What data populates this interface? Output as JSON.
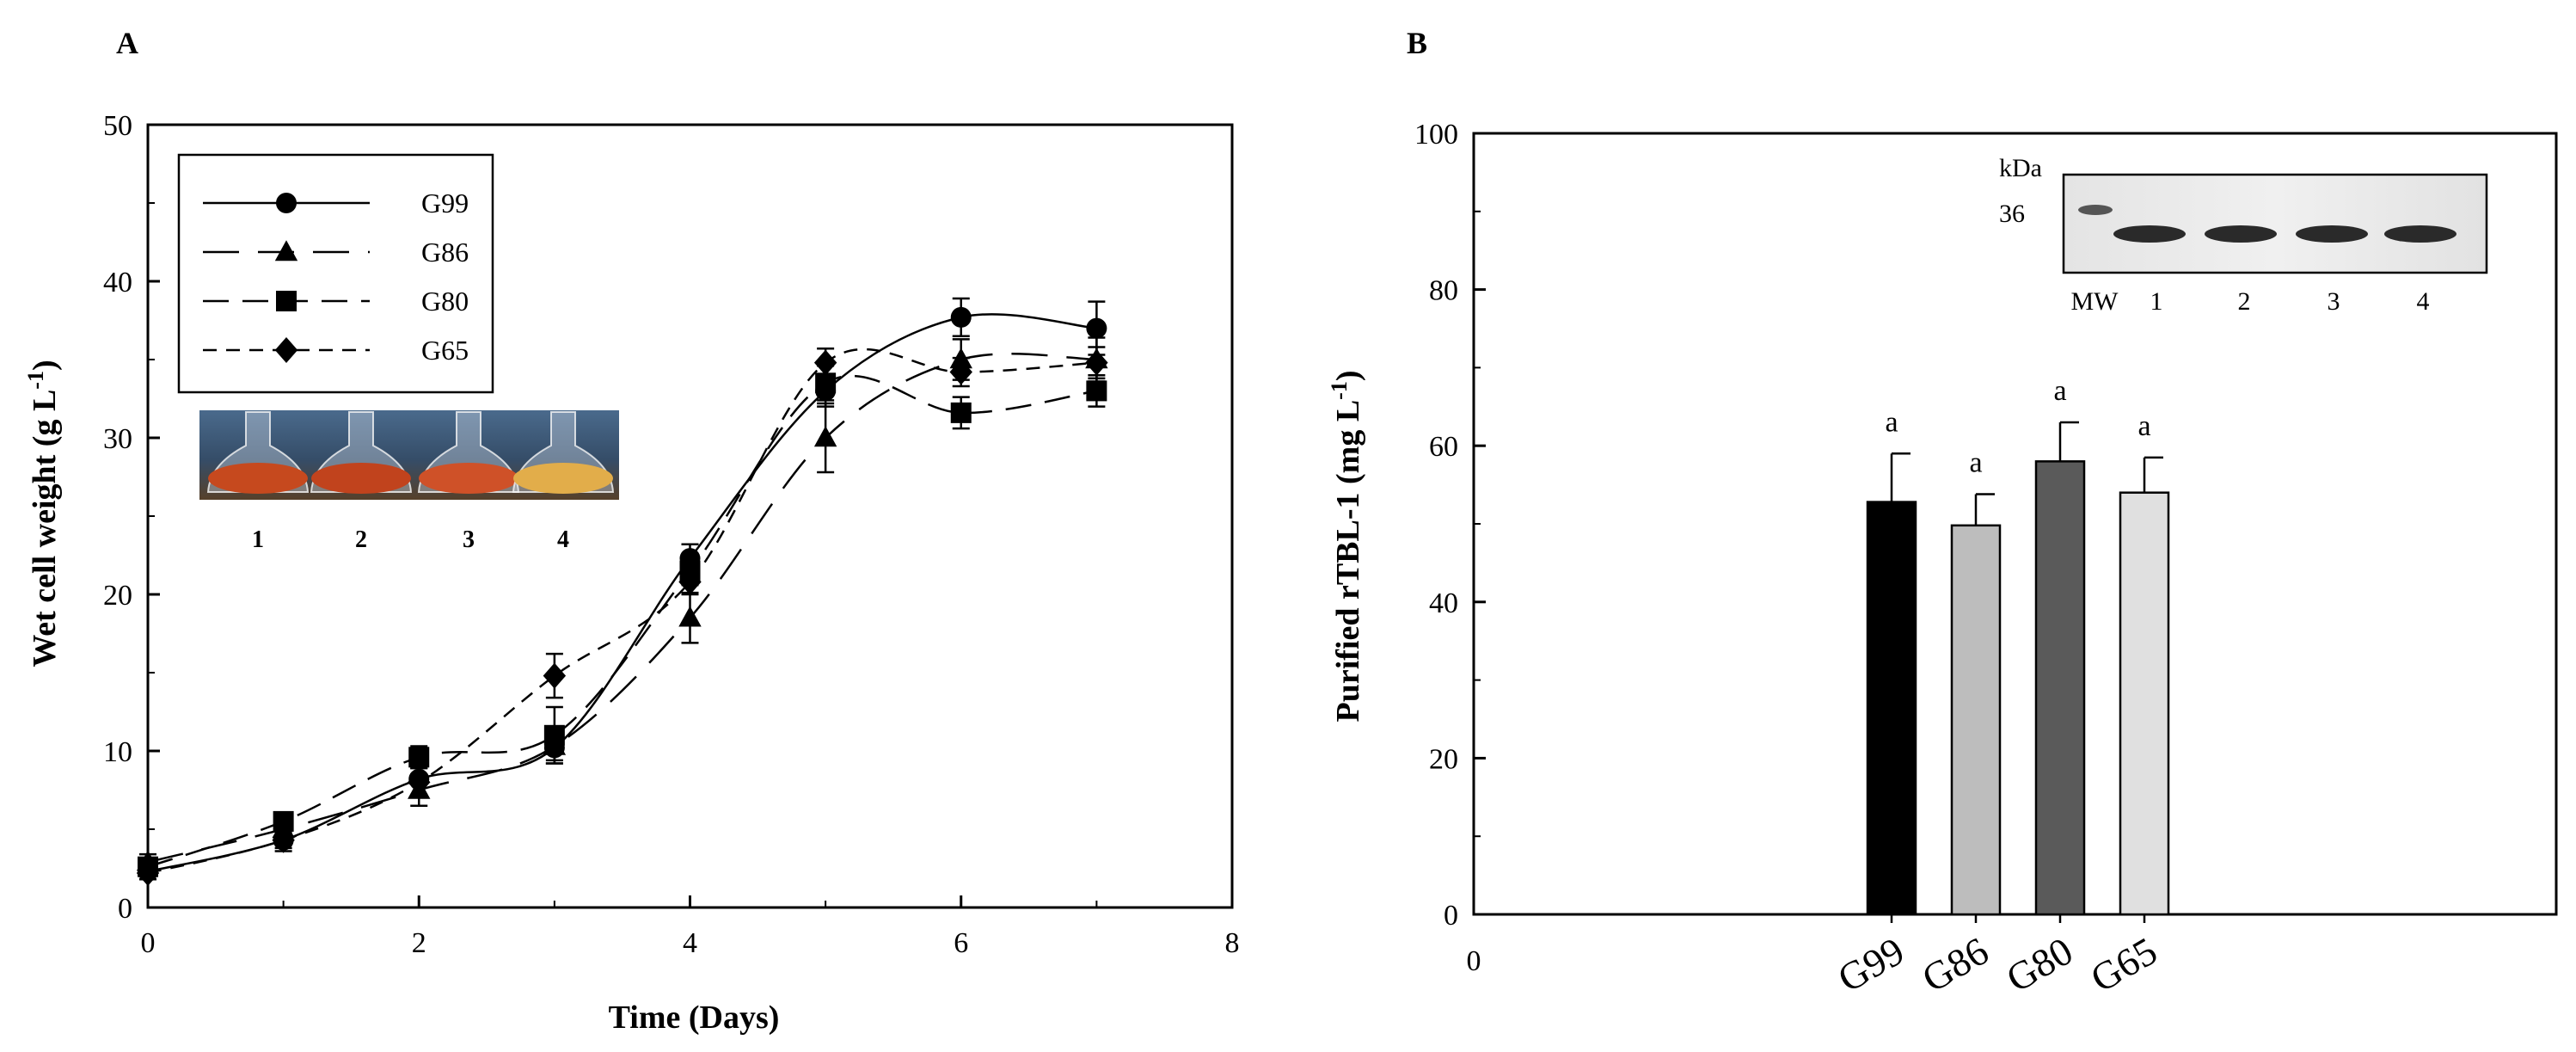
{
  "chart_data": [
    {
      "panel": "A",
      "type": "line",
      "xlabel": "Time (Days)",
      "ylabel": "Wet cell weight (g L",
      "ylabel_sup": "-1",
      "ylabel_close": ")",
      "xlim": [
        0,
        8
      ],
      "ylim": [
        0,
        50
      ],
      "xticks": [
        "0",
        "2",
        "4",
        "6",
        "8"
      ],
      "yticks": [
        "0",
        "10",
        "20",
        "30",
        "40",
        "50"
      ],
      "x": [
        0,
        1,
        2,
        3,
        4,
        5,
        6,
        7
      ],
      "grid": false,
      "legend_position": "top-left",
      "series": [
        {
          "name": "G99",
          "marker": "circle",
          "dash": "",
          "values": [
            2.3,
            4.3,
            8.2,
            10.2,
            22.3,
            33.0,
            37.7,
            37.0
          ],
          "errors": [
            0.5,
            0.7,
            1.0,
            1.0,
            0.9,
            1.0,
            1.2,
            1.7
          ]
        },
        {
          "name": "G86",
          "marker": "triangle",
          "dash": "42,22",
          "values": [
            2.9,
            5.0,
            7.5,
            10.3,
            18.5,
            30.0,
            35.0,
            35.0
          ],
          "errors": [
            0.5,
            0.7,
            1.0,
            0.9,
            1.6,
            2.2,
            1.3,
            1.4
          ]
        },
        {
          "name": "G80",
          "marker": "square",
          "dash": "30,16",
          "values": [
            2.6,
            5.5,
            9.6,
            11.0,
            21.5,
            33.5,
            31.6,
            33.0
          ],
          "errors": [
            0.4,
            0.5,
            0.7,
            1.8,
            0.9,
            1.1,
            1.0,
            1.0
          ]
        },
        {
          "name": "G65",
          "marker": "diamond",
          "dash": "16,11",
          "values": [
            2.2,
            4.3,
            8.0,
            14.8,
            20.8,
            34.8,
            34.2,
            34.8
          ],
          "errors": [
            0.4,
            0.5,
            0.9,
            1.4,
            0.8,
            0.9,
            0.9,
            1.0
          ]
        }
      ],
      "inset_photo": {
        "labels": [
          "1",
          "2",
          "3",
          "4"
        ],
        "colors": [
          "#c6491e",
          "#c1431d",
          "#cf5128",
          "#e2ad4a"
        ]
      }
    },
    {
      "panel": "B",
      "type": "bar",
      "ylabel": "Purified rTBL-1 (mg L",
      "ylabel_sup": "-1",
      "ylabel_close": ")",
      "x_axis_start_label": "0",
      "ylim": [
        0,
        100
      ],
      "yticks": [
        "0",
        "20",
        "40",
        "60",
        "80",
        "100"
      ],
      "categories": [
        "G99",
        "G86",
        "G80",
        "G65"
      ],
      "values": [
        52.8,
        49.8,
        58.0,
        54.0
      ],
      "errors": [
        6.2,
        4.0,
        5.0,
        4.5
      ],
      "significance": [
        "a",
        "a",
        "a",
        "a"
      ],
      "colors": [
        "#000000",
        "#bdbdbd",
        "#5a5a5a",
        "#e0e0e0"
      ],
      "gel_inset": {
        "unit": "kDa",
        "marker_size": "36",
        "lane_labels": [
          "MW",
          "1",
          "2",
          "3",
          "4"
        ]
      }
    }
  ],
  "panel_labels": {
    "a": "A",
    "b": "B"
  }
}
